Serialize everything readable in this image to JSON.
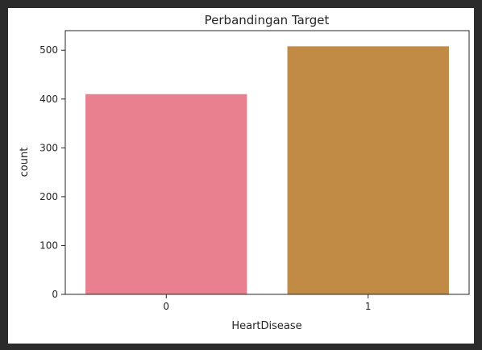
{
  "chart_data": {
    "type": "bar",
    "title": "Perbandingan Target",
    "xlabel": "HeartDisease",
    "ylabel": "count",
    "categories": [
      "0",
      "1"
    ],
    "values": [
      410,
      508
    ],
    "colors": [
      "#e8808f",
      "#c18a45"
    ],
    "ylim": [
      0,
      540
    ],
    "yticks": [
      0,
      100,
      200,
      300,
      400,
      500
    ],
    "grid": false,
    "legend": "none"
  }
}
